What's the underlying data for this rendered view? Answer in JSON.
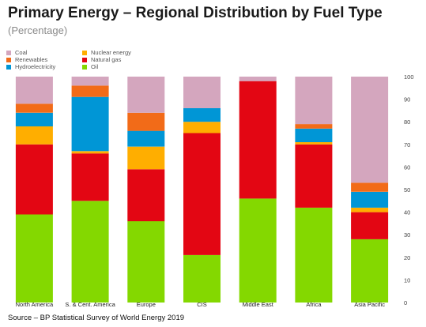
{
  "title": "Primary Energy – Regional Distribution by Fuel Type",
  "subtitle": "(Percentage)",
  "source": "Source – BP Statistical Survey of World Energy 2019",
  "colors": {
    "Coal": "#d4a6be",
    "Nuclear energy": "#ffae00",
    "Renewables": "#f26b18",
    "Natural gas": "#e30613",
    "Hydroelectricity": "#0096d6",
    "Oil": "#84d800"
  },
  "legend": [
    "Coal",
    "Nuclear energy",
    "Renewables",
    "Natural gas",
    "Hydroelectricity",
    "Oil"
  ],
  "chart_data": {
    "type": "bar",
    "stacked": true,
    "categories": [
      "North America",
      "S. & Cent. America",
      "Europe",
      "CIS",
      "Middle East",
      "Africa",
      "Asia Pacific"
    ],
    "series": [
      {
        "name": "Oil",
        "values": [
          39,
          45,
          36,
          21,
          46,
          42,
          28
        ]
      },
      {
        "name": "Natural gas",
        "values": [
          31,
          21,
          23,
          54,
          52,
          28,
          12
        ]
      },
      {
        "name": "Nuclear energy",
        "values": [
          8,
          1,
          10,
          5,
          0,
          1,
          2
        ]
      },
      {
        "name": "Hydroelectricity",
        "values": [
          6,
          24,
          7,
          6,
          0,
          6,
          7
        ]
      },
      {
        "name": "Renewables",
        "values": [
          4,
          5,
          8,
          0,
          0,
          2,
          4
        ]
      },
      {
        "name": "Coal",
        "values": [
          12,
          4,
          16,
          14,
          2,
          21,
          47
        ]
      }
    ],
    "ylim": [
      0,
      100
    ],
    "yticks": [
      0,
      10,
      20,
      30,
      40,
      50,
      60,
      70,
      80,
      90,
      100
    ],
    "y_axis_side": "right",
    "xlabel": "",
    "ylabel": ""
  }
}
